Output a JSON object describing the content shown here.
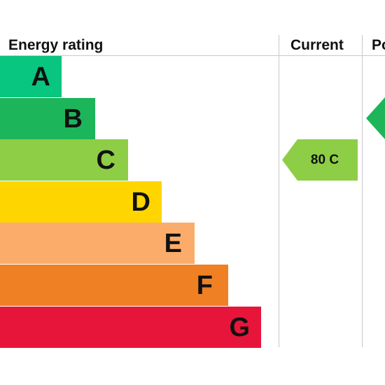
{
  "chart_data": {
    "type": "bar",
    "title": "Energy rating",
    "columns": [
      "Current",
      "Potential"
    ],
    "categories": [
      "A",
      "B",
      "C",
      "D",
      "E",
      "F",
      "G"
    ],
    "colors": [
      "#08c57f",
      "#1cb55a",
      "#8dce46",
      "#ffd500",
      "#fbac6b",
      "#ef8024",
      "#e8153b"
    ],
    "current": {
      "value": 80,
      "band": "C",
      "color": "#8dce46",
      "label": "80 C"
    },
    "potential": {
      "band": "B",
      "color": "#1cb55a"
    }
  },
  "header": {
    "energy_label": "Energy rating",
    "current_label": "Current",
    "potential_label": "Po"
  }
}
